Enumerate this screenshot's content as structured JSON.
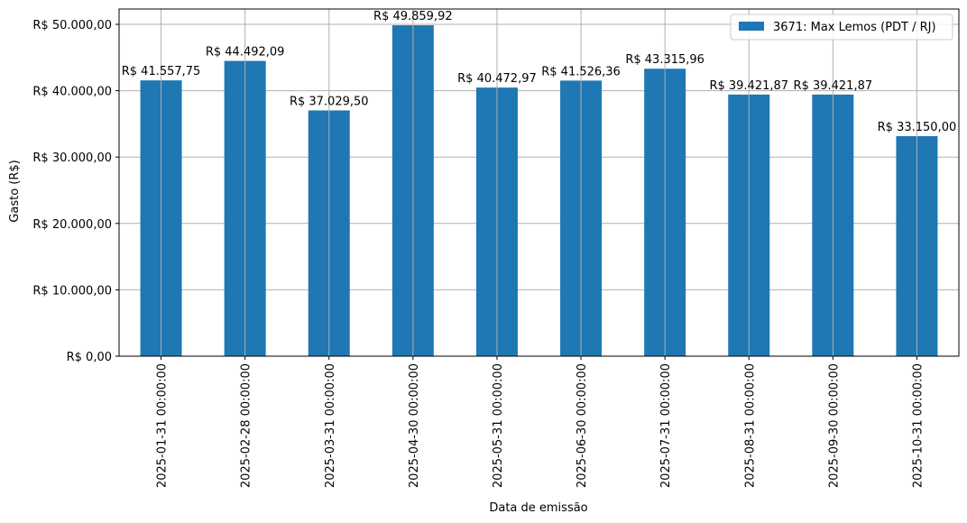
{
  "chart_data": {
    "type": "bar",
    "title": "",
    "xlabel": "Data de emissão",
    "ylabel": "Gasto (R$)",
    "ylim": [
      0,
      52500
    ],
    "grid": true,
    "legend_position": "upper right",
    "color": "#1f77b4",
    "categories": [
      "2025-01-31 00:00:00",
      "2025-02-28 00:00:00",
      "2025-03-31 00:00:00",
      "2025-04-30 00:00:00",
      "2025-05-31 00:00:00",
      "2025-06-30 00:00:00",
      "2025-07-31 00:00:00",
      "2025-08-31 00:00:00",
      "2025-09-30 00:00:00",
      "2025-10-31 00:00:00"
    ],
    "series": [
      {
        "name": "3671: Max Lemos (PDT / RJ)",
        "values": [
          41557.75,
          44492.09,
          37029.5,
          49859.92,
          40472.97,
          41526.36,
          43315.96,
          39421.87,
          39421.87,
          33150.0
        ],
        "labels": [
          "R$ 41.557,75",
          "R$ 44.492,09",
          "R$ 37.029,50",
          "R$ 49.859,92",
          "R$ 40.472,97",
          "R$ 41.526,36",
          "R$ 43.315,96",
          "R$ 39.421,87",
          "R$ 39.421,87",
          "R$ 33.150,00"
        ]
      }
    ],
    "yticks": [
      0,
      10000,
      20000,
      30000,
      40000,
      50000
    ],
    "ytick_labels": [
      "R$ 0,00",
      "R$ 10.000,00",
      "R$ 20.000,00",
      "R$ 30.000,00",
      "R$ 40.000,00",
      "R$ 50.000,00"
    ]
  }
}
